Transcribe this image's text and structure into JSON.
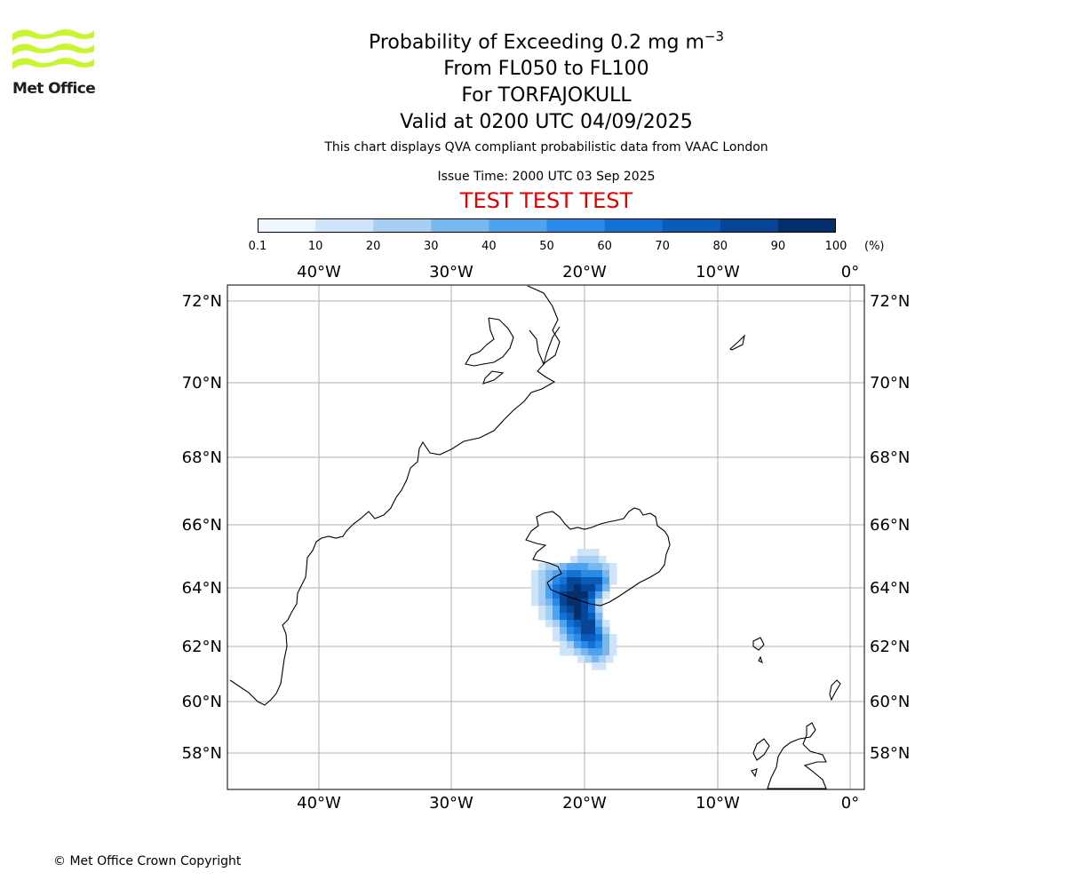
{
  "logo": {
    "text": "Met Office",
    "color": "#c8f532"
  },
  "title": {
    "line1_prefix": "Probability of Exceeding 0.2 mg m",
    "line1_exponent": "−3",
    "line2": "From FL050 to FL100",
    "line3": "For TORFAJOKULL",
    "line4": "Valid at 0200 UTC 04/09/2025"
  },
  "description": "This chart displays QVA compliant probabilistic data from VAAC London",
  "issue_time": "Issue Time: 2000 UTC 03 Sep 2025",
  "test_banner": "TEST TEST TEST",
  "colorbar": {
    "ticks": [
      "0.1",
      "10",
      "20",
      "30",
      "40",
      "50",
      "60",
      "70",
      "80",
      "90",
      "100"
    ],
    "unit": "(%)",
    "colors": [
      "#eef5fd",
      "#cfe4f8",
      "#a7cff3",
      "#79b8ef",
      "#4ea2ee",
      "#2a8ae8",
      "#1472d6",
      "#0a5cb8",
      "#074596",
      "#042f6c"
    ]
  },
  "axes": {
    "lon_labels": [
      "40°W",
      "30°W",
      "20°W",
      "10°W",
      "0°"
    ],
    "lat_labels": [
      "72°N",
      "70°N",
      "68°N",
      "66°N",
      "64°N",
      "62°N",
      "60°N",
      "58°N"
    ]
  },
  "copyright": "© Met Office Crown Copyright"
}
